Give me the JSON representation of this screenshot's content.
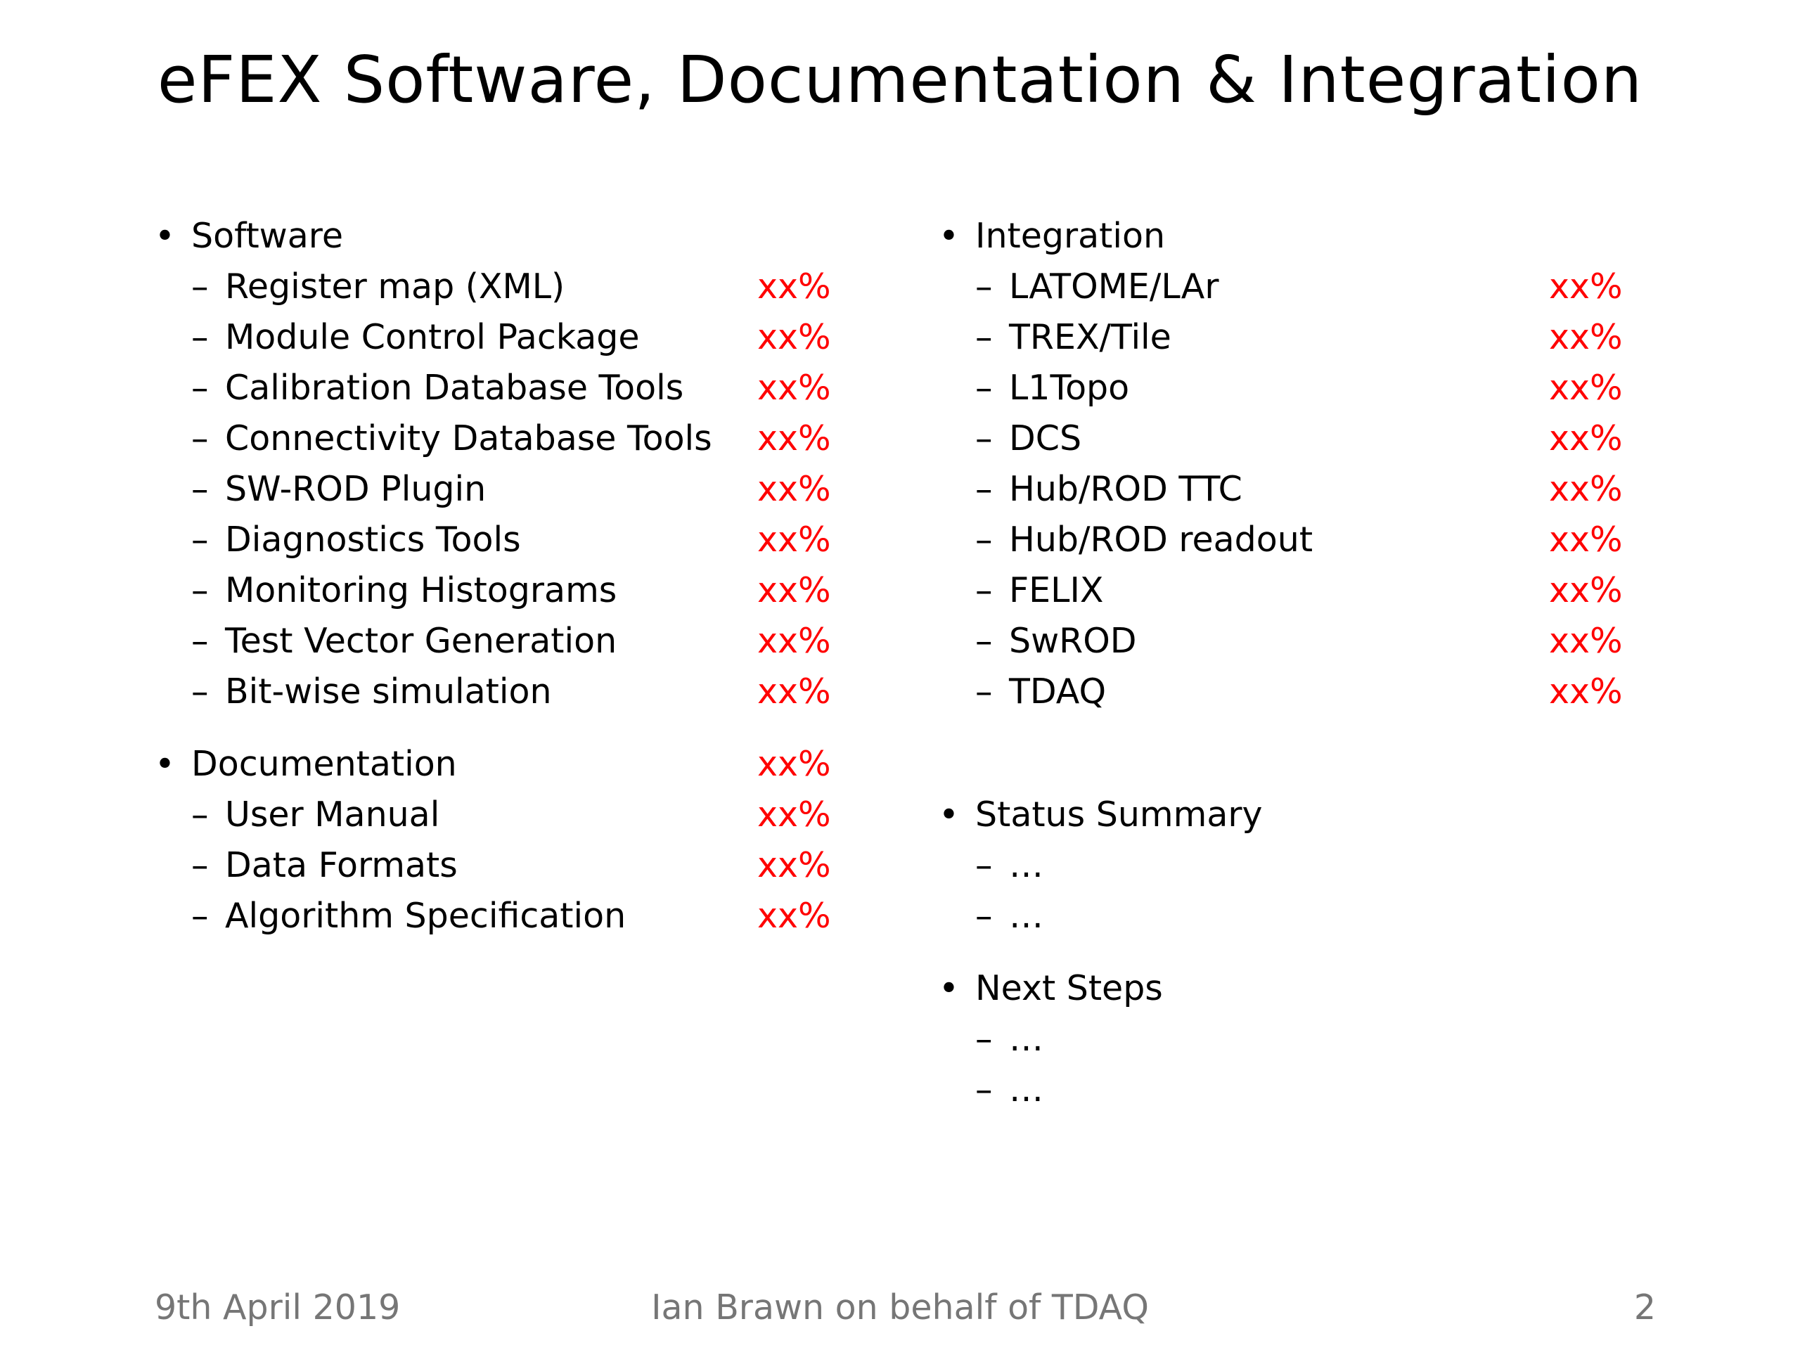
{
  "title": "eFEX Software, Documentation & Integration",
  "bullet_glyph": "•",
  "dash_glyph": "–",
  "left": {
    "software": {
      "label": "Software",
      "items": [
        {
          "label": "Register map (XML)",
          "value": "xx%"
        },
        {
          "label": "Module Control Package",
          "value": "xx%"
        },
        {
          "label": "Calibration Database Tools",
          "value": "xx%"
        },
        {
          "label": "Connectivity Database Tools",
          "value": "xx%"
        },
        {
          "label": "SW-ROD Plugin",
          "value": "xx%"
        },
        {
          "label": "Diagnostics Tools",
          "value": "xx%"
        },
        {
          "label": "Monitoring Histograms",
          "value": "xx%"
        },
        {
          "label": "Test Vector Generation",
          "value": "xx%"
        },
        {
          "label": "Bit-wise simulation",
          "value": "xx%"
        }
      ]
    },
    "documentation": {
      "label": "Documentation",
      "value": "xx%",
      "items": [
        {
          "label": "User Manual",
          "value": "xx%"
        },
        {
          "label": "Data Formats",
          "value": "xx%"
        },
        {
          "label": "Algorithm Specification",
          "value": "xx%"
        }
      ]
    }
  },
  "right": {
    "integration": {
      "label": "Integration",
      "items": [
        {
          "label": "LATOME/LAr",
          "value": "xx%"
        },
        {
          "label": "TREX/Tile",
          "value": "xx%"
        },
        {
          "label": "L1Topo",
          "value": "xx%"
        },
        {
          "label": "DCS",
          "value": "xx%"
        },
        {
          "label": "Hub/ROD TTC",
          "value": "xx%"
        },
        {
          "label": "Hub/ROD readout",
          "value": "xx%"
        },
        {
          "label": "FELIX",
          "value": "xx%"
        },
        {
          "label": "SwROD",
          "value": "xx%"
        },
        {
          "label": "TDAQ",
          "value": "xx%"
        }
      ]
    },
    "status_summary": {
      "label": "Status Summary",
      "items": [
        "…",
        "…"
      ]
    },
    "next_steps": {
      "label": "Next Steps",
      "items": [
        "…",
        "…"
      ]
    }
  },
  "footer": {
    "date": "9th April 2019",
    "author": "Ian Brawn on behalf of TDAQ",
    "page": "2"
  },
  "colors": {
    "percentage": "#ff0000",
    "footer_text": "#767676"
  }
}
